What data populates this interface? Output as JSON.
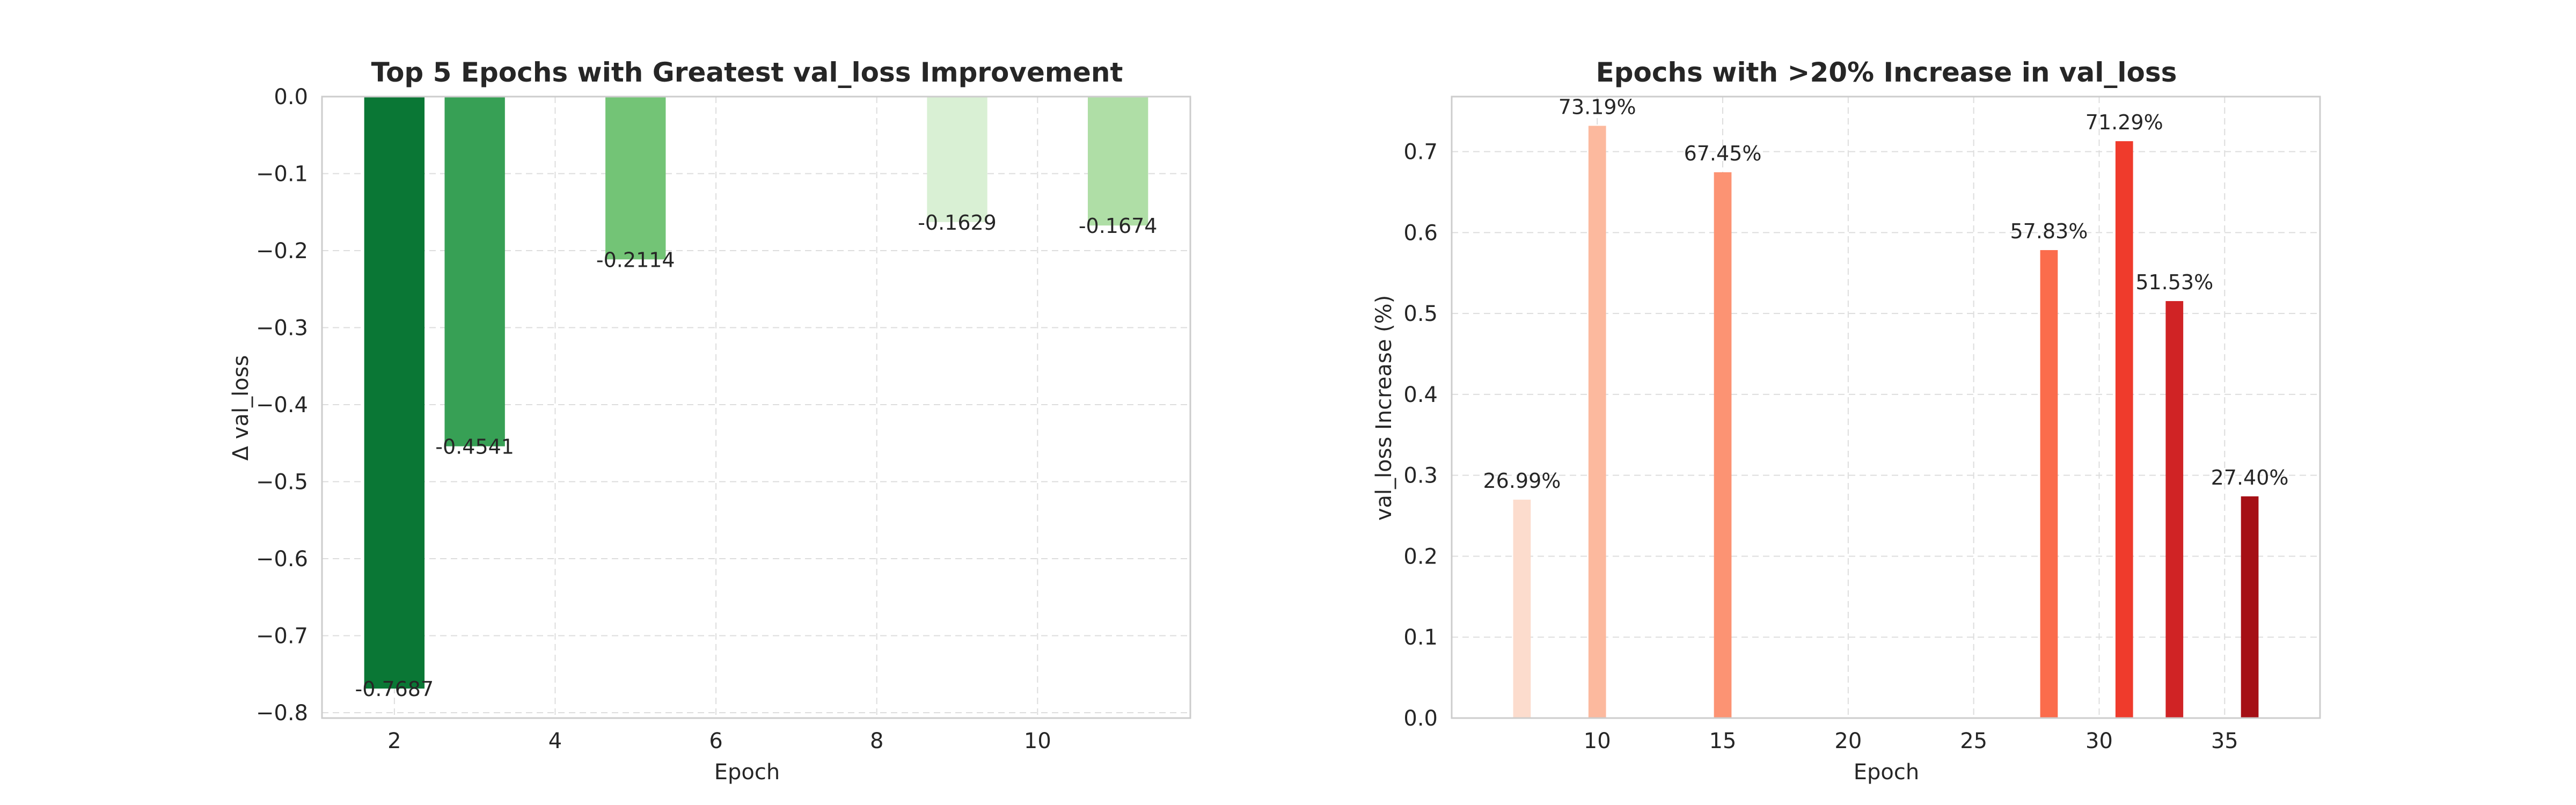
{
  "chart_data": [
    {
      "type": "bar",
      "title": "Top 5 Epochs with Greatest val_loss Improvement",
      "xlabel": "Epoch",
      "ylabel": "Δ val_loss",
      "xlim": [
        1.1,
        11.9
      ],
      "ylim": [
        -0.807,
        0.0
      ],
      "xticks": [
        2,
        4,
        6,
        8,
        10
      ],
      "yticks": [
        0.0,
        -0.1,
        -0.2,
        -0.3,
        -0.4,
        -0.5,
        -0.6,
        -0.7,
        -0.8
      ],
      "grid": true,
      "bar_width": 0.75,
      "x": [
        2,
        3,
        5,
        9,
        11
      ],
      "values": [
        -0.7687,
        -0.4541,
        -0.2114,
        -0.1629,
        -0.1674
      ],
      "value_labels": [
        "-0.7687",
        "-0.4541",
        "-0.2114",
        "-0.1629",
        "-0.1674"
      ],
      "colors": [
        "#0a7735",
        "#37a055",
        "#73c476",
        "#d9f0d4",
        "#afdea6"
      ]
    },
    {
      "type": "bar",
      "title": "Epochs with >20% Increase in val_loss",
      "xlabel": "Epoch",
      "ylabel": "val_loss Increase (%)",
      "xlim": [
        4.2,
        38.8
      ],
      "ylim": [
        0.0,
        0.768
      ],
      "xticks": [
        10,
        15,
        20,
        25,
        30,
        35
      ],
      "yticks": [
        0.0,
        0.1,
        0.2,
        0.3,
        0.4,
        0.5,
        0.6,
        0.7
      ],
      "grid": true,
      "bar_width": 0.7,
      "x": [
        7,
        10,
        15,
        28,
        31,
        33,
        36
      ],
      "values": [
        0.2699,
        0.7319,
        0.6745,
        0.5783,
        0.7129,
        0.5153,
        0.274
      ],
      "value_labels": [
        "26.99%",
        "73.19%",
        "67.45%",
        "57.83%",
        "71.29%",
        "51.53%",
        "27.40%"
      ],
      "colors": [
        "#fcdccd",
        "#fcb99e",
        "#fc9373",
        "#fb6c4c",
        "#ef3b2c",
        "#d02325",
        "#a50f15"
      ]
    }
  ]
}
